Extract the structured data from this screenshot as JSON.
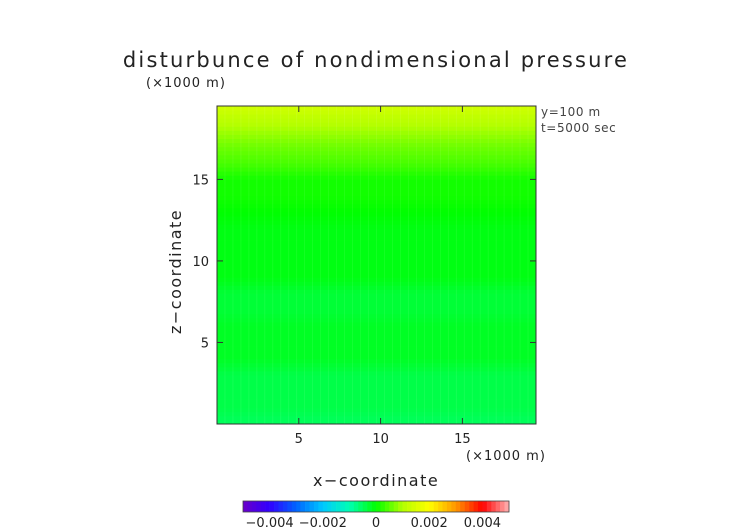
{
  "chart_data": {
    "type": "heatmap",
    "title": "disturbunce of nondimensional pressure",
    "xlabel": "x−coordinate",
    "ylabel": "z−coordinate",
    "x_unit": "(×1000 m)",
    "y_unit": "(×1000 m)",
    "annotations": [
      "y=100 m",
      "t=5000 sec"
    ],
    "xlim": [
      0,
      19.5
    ],
    "ylim": [
      0,
      19.5
    ],
    "x_ticks": [
      5,
      10,
      15
    ],
    "y_ticks": [
      5,
      10,
      15
    ],
    "x_tick_labels": [
      "5",
      "10",
      "15"
    ],
    "y_tick_labels": [
      "5",
      "10",
      "15"
    ],
    "z_profile": {
      "z": [
        0.25,
        1.0,
        2.0,
        3.0,
        4.0,
        5.0,
        6.0,
        7.0,
        8.0,
        9.0,
        10.0,
        11.0,
        12.0,
        13.0,
        14.0,
        15.0,
        16.0,
        17.0,
        18.0,
        19.0,
        19.5
      ],
      "value": [
        -0.0005,
        -0.0004,
        -0.0004,
        -0.0004,
        -0.0002,
        -0.0002,
        -0.0002,
        -0.0003,
        -0.0003,
        -0.0001,
        -0.0001,
        -0.0001,
        -0.0001,
        0.0,
        0.0001,
        0.0001,
        0.0004,
        0.0006,
        0.0009,
        0.0012,
        0.0014
      ]
    },
    "colorbar": {
      "range": [
        -0.005,
        0.005
      ],
      "tick_values": [
        -0.004,
        -0.002,
        0,
        0.002,
        0.004
      ],
      "tick_labels": [
        "−0.004",
        "−0.002",
        "0",
        "0.002",
        "0.004"
      ],
      "colors": [
        "#6a00c8",
        "#3000ff",
        "#0064ff",
        "#00c8ff",
        "#00ffb4",
        "#00ff00",
        "#b4ff00",
        "#ffff00",
        "#ff9600",
        "#ff0000",
        "#ffb4b4"
      ]
    }
  }
}
